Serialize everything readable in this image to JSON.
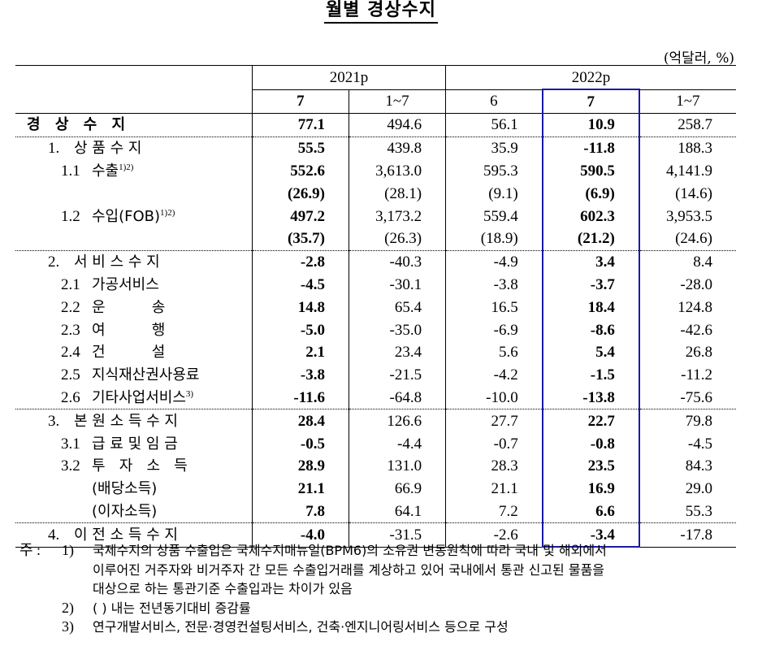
{
  "title": "월별 경상수지",
  "unit": "(억달러, %)",
  "header": {
    "year_groups": [
      {
        "label": "2021p",
        "span": 2
      },
      {
        "label": "2022p",
        "span": 3
      }
    ],
    "periods": [
      "7",
      "1~7",
      "6",
      "7",
      "1~7"
    ],
    "highlighted_column_index": 3,
    "highlight_color": "#1a1aa6"
  },
  "rows": [
    {
      "num": "",
      "label": "경 상 수 지",
      "values": [
        "77.1",
        "494.6",
        "56.1",
        "10.9",
        "258.7"
      ]
    },
    {
      "num": "1.",
      "label": "상 품 수 지",
      "values": [
        "55.5",
        "439.8",
        "35.9",
        "-11.8",
        "188.3"
      ]
    },
    {
      "num": "1.1",
      "label": "수출",
      "sup": "1)2)",
      "values": [
        "552.6",
        "3,613.0",
        "595.3",
        "590.5",
        "4,141.9"
      ]
    },
    {
      "num": "",
      "label": "",
      "values": [
        "(26.9)",
        "(28.1)",
        "(9.1)",
        "(6.9)",
        "(14.6)"
      ]
    },
    {
      "num": "1.2",
      "label": "수입(FOB)",
      "sup": "1)2)",
      "values": [
        "497.2",
        "3,173.2",
        "559.4",
        "602.3",
        "3,953.5"
      ]
    },
    {
      "num": "",
      "label": "",
      "values": [
        "(35.7)",
        "(26.3)",
        "(18.9)",
        "(21.2)",
        "(24.6)"
      ]
    },
    {
      "num": "2.",
      "label": "서 비 스 수 지",
      "values": [
        "-2.8",
        "-40.3",
        "-4.9",
        "3.4",
        "8.4"
      ]
    },
    {
      "num": "2.1",
      "label": "가공서비스",
      "values": [
        "-4.5",
        "-30.1",
        "-3.8",
        "-3.7",
        "-28.0"
      ]
    },
    {
      "num": "2.2",
      "label": "운          송",
      "values": [
        "14.8",
        "65.4",
        "16.5",
        "18.4",
        "124.8"
      ]
    },
    {
      "num": "2.3",
      "label": "여          행",
      "values": [
        "-5.0",
        "-35.0",
        "-6.9",
        "-8.6",
        "-42.6"
      ]
    },
    {
      "num": "2.4",
      "label": "건          설",
      "values": [
        "2.1",
        "23.4",
        "5.6",
        "5.4",
        "26.8"
      ]
    },
    {
      "num": "2.5",
      "label": "지식재산권사용료",
      "values": [
        "-3.8",
        "-21.5",
        "-4.2",
        "-1.5",
        "-11.2"
      ]
    },
    {
      "num": "2.6",
      "label": "기타사업서비스",
      "sup": "3)",
      "values": [
        "-11.6",
        "-64.8",
        "-10.0",
        "-13.8",
        "-75.6"
      ]
    },
    {
      "num": "3.",
      "label": "본 원 소 득 수 지",
      "values": [
        "28.4",
        "126.6",
        "27.7",
        "22.7",
        "79.8"
      ]
    },
    {
      "num": "3.1",
      "label": "급 료 및 임 금",
      "values": [
        "-0.5",
        "-4.4",
        "-0.7",
        "-0.8",
        "-4.5"
      ]
    },
    {
      "num": "3.2",
      "label": "투   자   소   득",
      "values": [
        "28.9",
        "131.0",
        "28.3",
        "23.5",
        "84.3"
      ]
    },
    {
      "num": "",
      "label": "(배당소득)",
      "values": [
        "21.1",
        "66.9",
        "21.1",
        "16.9",
        "29.0"
      ]
    },
    {
      "num": "",
      "label": "(이자소득)",
      "values": [
        "7.8",
        "64.1",
        "7.2",
        "6.6",
        "55.3"
      ]
    },
    {
      "num": "4.",
      "label": "이 전 소 득 수 지",
      "values": [
        "-4.0",
        "-31.5",
        "-2.6",
        "-3.4",
        "-17.8"
      ]
    }
  ],
  "notes": {
    "prefix": "주 :",
    "items": [
      {
        "num": "1)",
        "lines": [
          "국제수지의 상품 수출입은 국제수지매뉴얼(BPM6)의 소유권 변동원칙에 따라 국내 및 해외에서",
          "이루어진 거주자와 비거주자 간 모든 수출입거래를 계상하고 있어 국내에서 통관 신고된 물품을",
          "대상으로 하는 통관기준 수출입과는 차이가 있음"
        ]
      },
      {
        "num": "2)",
        "lines": [
          "(   ) 내는 전년동기대비 증감률"
        ]
      },
      {
        "num": "3)",
        "lines": [
          "연구개발서비스, 전문·경영컨설팅서비스, 건축·엔지니어링서비스 등으로 구성"
        ]
      }
    ]
  }
}
